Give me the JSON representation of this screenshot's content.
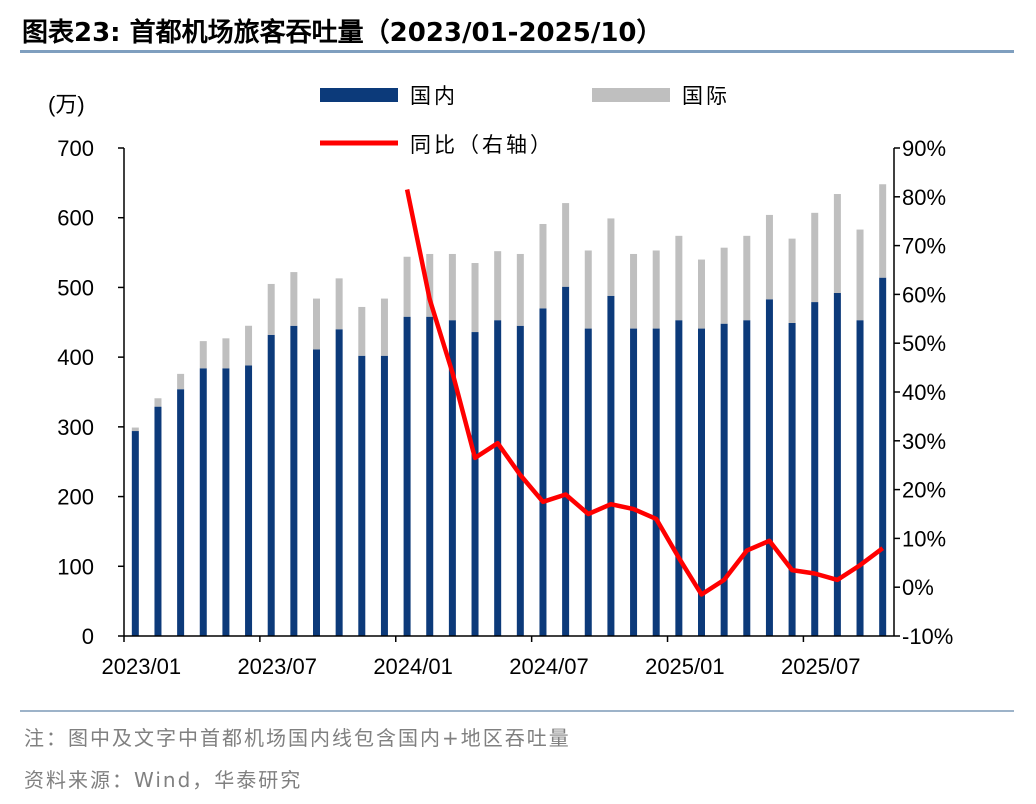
{
  "title": "图表23:  首都机场旅客吞吐量（2023/01-2025/10）",
  "note": "注：图中及文字中首都机场国内线包含国内+地区吞吐量",
  "source": "资料来源：Wind，华泰研究",
  "colors": {
    "domestic": "#0c3a7a",
    "international": "#bfbfbf",
    "yoy": "#ff0000",
    "rule": "#7f9fbf"
  },
  "chart_data": {
    "type": "bar",
    "stacked": true,
    "left_axis_unit": "(万)",
    "ylim": [
      0,
      700
    ],
    "yticks": [
      "0",
      "100",
      "200",
      "300",
      "400",
      "500",
      "600",
      "700"
    ],
    "y2lim": [
      -10,
      90
    ],
    "y2ticks": [
      "-10%",
      "0%",
      "10%",
      "20%",
      "30%",
      "40%",
      "50%",
      "60%",
      "70%",
      "80%",
      "90%"
    ],
    "x_tick_labels": [
      {
        "index": 0,
        "label": "2023/01"
      },
      {
        "index": 6,
        "label": "2023/07"
      },
      {
        "index": 12,
        "label": "2024/01"
      },
      {
        "index": 18,
        "label": "2024/07"
      },
      {
        "index": 24,
        "label": "2025/01"
      },
      {
        "index": 30,
        "label": "2025/07"
      }
    ],
    "categories": [
      "2023/01",
      "2023/02",
      "2023/03",
      "2023/04",
      "2023/05",
      "2023/06",
      "2023/07",
      "2023/08",
      "2023/09",
      "2023/10",
      "2023/11",
      "2023/12",
      "2024/01",
      "2024/02",
      "2024/03",
      "2024/04",
      "2024/05",
      "2024/06",
      "2024/07",
      "2024/08",
      "2024/09",
      "2024/10",
      "2024/11",
      "2024/12",
      "2025/01",
      "2025/02",
      "2025/03",
      "2025/04",
      "2025/05",
      "2025/06",
      "2025/07",
      "2025/08",
      "2025/09",
      "2025/10"
    ],
    "series": [
      {
        "name": "国内",
        "axis": "left",
        "kind": "bar",
        "values": [
          294,
          329,
          354,
          384,
          384,
          388,
          432,
          445,
          411,
          440,
          402,
          402,
          458,
          458,
          453,
          436,
          453,
          445,
          470,
          501,
          441,
          488,
          441,
          441,
          453,
          441,
          448,
          453,
          483,
          449,
          479,
          492,
          453,
          514
        ]
      },
      {
        "name": "国际",
        "axis": "left",
        "kind": "bar",
        "values": [
          5,
          12,
          22,
          39,
          43,
          57,
          73,
          77,
          73,
          73,
          70,
          82,
          86,
          90,
          95,
          99,
          99,
          103,
          121,
          120,
          112,
          111,
          107,
          112,
          121,
          99,
          109,
          121,
          121,
          121,
          128,
          142,
          130,
          134
        ]
      },
      {
        "name": "同比（右轴）",
        "axis": "right",
        "kind": "line",
        "values": [
          null,
          null,
          null,
          null,
          null,
          null,
          null,
          null,
          null,
          null,
          null,
          null,
          81.5,
          59,
          44,
          26.5,
          29.5,
          23,
          17.5,
          19,
          15,
          17,
          16,
          14,
          6,
          -1.5,
          1.5,
          7.5,
          9.5,
          3.5,
          2.8,
          1.5,
          4.5,
          8
        ]
      }
    ],
    "legend_position": "top",
    "grid": false
  }
}
